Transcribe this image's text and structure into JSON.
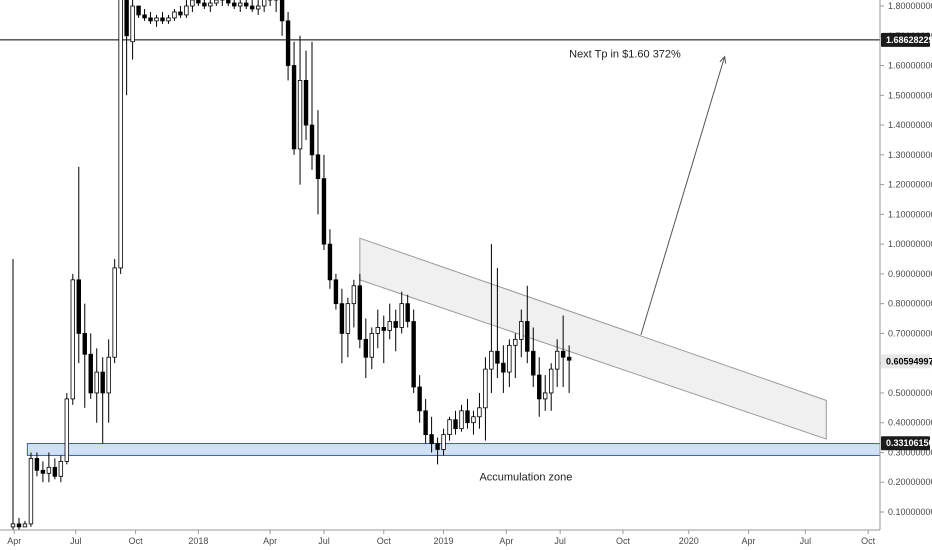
{
  "chart_data": {
    "type": "candlestick",
    "interval": "weekly",
    "title": "",
    "xlabel": "",
    "ylabel": "",
    "ylim": [
      0.04,
      1.82
    ],
    "grid": false,
    "y_ticks": [
      0.1,
      0.2,
      0.3,
      0.4,
      0.5,
      0.6,
      0.7,
      0.8,
      0.9,
      1.0,
      1.1,
      1.2,
      1.3,
      1.4,
      1.5,
      1.6,
      1.7,
      1.8
    ],
    "y_tick_labels": [
      "0.10000000",
      "0.20000000",
      "0.30000000",
      "0.40000000",
      "0.50000000",
      "0.60000000",
      "0.70000000",
      "0.80000000",
      "0.90000000",
      "1.00000000",
      "1.10000000",
      "1.20000000",
      "1.30000000",
      "1.40000000",
      "1.50000000",
      "1.60000000",
      "1.70000000",
      "1.80000000"
    ],
    "x_ticks": [
      {
        "label": "Apr",
        "t": 0.2
      },
      {
        "label": "Jul",
        "t": 10.5
      },
      {
        "label": "Oct",
        "t": 20.5
      },
      {
        "label": "2018",
        "t": 31
      },
      {
        "label": "Apr",
        "t": 43
      },
      {
        "label": "Jul",
        "t": 52
      },
      {
        "label": "Oct",
        "t": 62
      },
      {
        "label": "2019",
        "t": 72
      },
      {
        "label": "Apr",
        "t": 82.5
      },
      {
        "label": "Jul",
        "t": 91.5
      },
      {
        "label": "Oct",
        "t": 102
      },
      {
        "label": "2020",
        "t": 113
      },
      {
        "label": "Apr",
        "t": 123
      },
      {
        "label": "Jul",
        "t": 132.5
      },
      {
        "label": "Oct",
        "t": 143
      }
    ],
    "candles": [
      [
        0.05,
        0.95,
        0.04,
        0.06
      ],
      [
        0.06,
        0.08,
        0.04,
        0.05
      ],
      [
        0.05,
        0.07,
        0.05,
        0.06
      ],
      [
        0.06,
        0.3,
        0.05,
        0.28
      ],
      [
        0.28,
        0.3,
        0.22,
        0.24
      ],
      [
        0.24,
        0.27,
        0.2,
        0.23
      ],
      [
        0.23,
        0.3,
        0.2,
        0.25
      ],
      [
        0.25,
        0.28,
        0.21,
        0.22
      ],
      [
        0.22,
        0.29,
        0.2,
        0.27
      ],
      [
        0.27,
        0.5,
        0.26,
        0.48
      ],
      [
        0.48,
        0.9,
        0.46,
        0.88
      ],
      [
        0.88,
        1.26,
        0.6,
        0.7
      ],
      [
        0.7,
        0.8,
        0.45,
        0.63
      ],
      [
        0.63,
        0.7,
        0.48,
        0.5
      ],
      [
        0.5,
        0.65,
        0.4,
        0.57
      ],
      [
        0.57,
        0.62,
        0.33,
        0.5
      ],
      [
        0.5,
        0.68,
        0.4,
        0.62
      ],
      [
        0.62,
        0.95,
        0.6,
        0.92
      ],
      [
        0.92,
        1.9,
        0.9,
        1.85
      ],
      [
        1.85,
        1.95,
        1.5,
        1.7
      ]
    ],
    "candles_2": [
      [
        1.68,
        1.85,
        1.62,
        1.8
      ],
      [
        1.8,
        1.78,
        1.76,
        1.77
      ],
      [
        1.77,
        1.79,
        1.75,
        1.76
      ],
      [
        1.76,
        1.78,
        1.74,
        1.75
      ],
      [
        1.75,
        1.77,
        1.73,
        1.76
      ],
      [
        1.76,
        1.78,
        1.74,
        1.75
      ],
      [
        1.75,
        1.77,
        1.74,
        1.76
      ],
      [
        1.76,
        1.79,
        1.75,
        1.78
      ],
      [
        1.78,
        1.8,
        1.76,
        1.77
      ],
      [
        1.77,
        1.82,
        1.76,
        1.8
      ],
      [
        1.8,
        1.86,
        1.78,
        1.82
      ],
      [
        1.82,
        1.84,
        1.8,
        1.81
      ],
      [
        1.81,
        1.83,
        1.79,
        1.8
      ],
      [
        1.8,
        1.82,
        1.78,
        1.81
      ],
      [
        1.81,
        1.84,
        1.8,
        1.82
      ],
      [
        1.82,
        1.85,
        1.8,
        1.83
      ],
      [
        1.83,
        1.84,
        1.8,
        1.81
      ],
      [
        1.81,
        1.83,
        1.79,
        1.8
      ],
      [
        1.8,
        1.82,
        1.78,
        1.81
      ],
      [
        1.81,
        1.83,
        1.79,
        1.8
      ],
      [
        1.8,
        1.82,
        1.78,
        1.79
      ],
      [
        1.79,
        1.82,
        1.77,
        1.8
      ],
      [
        1.8,
        1.85,
        1.78,
        1.83
      ],
      [
        1.83,
        1.86,
        1.8,
        1.82
      ],
      [
        1.82,
        1.88,
        1.78,
        1.84
      ],
      [
        1.84,
        1.86,
        1.7,
        1.75
      ],
      [
        1.75,
        1.78,
        1.55,
        1.6
      ],
      [
        1.6,
        1.68,
        1.3,
        1.32
      ],
      [
        1.32,
        1.7,
        1.2,
        1.55
      ],
      [
        1.55,
        1.65,
        1.35,
        1.4
      ],
      [
        1.4,
        1.68,
        1.25,
        1.3
      ],
      [
        1.3,
        1.45,
        1.1,
        1.22
      ],
      [
        1.22,
        1.3,
        0.98,
        1.0
      ],
      [
        1.0,
        1.05,
        0.85,
        0.88
      ],
      [
        0.88,
        0.9,
        0.78,
        0.8
      ]
    ],
    "candles_3": [
      [
        0.8,
        0.85,
        0.6,
        0.7
      ],
      [
        0.7,
        0.82,
        0.62,
        0.8
      ],
      [
        0.8,
        0.88,
        0.72,
        0.86
      ],
      [
        0.86,
        0.9,
        0.65,
        0.68
      ],
      [
        0.68,
        0.75,
        0.55,
        0.62
      ],
      [
        0.62,
        0.72,
        0.58,
        0.7
      ],
      [
        0.7,
        0.78,
        0.65,
        0.72
      ],
      [
        0.72,
        0.76,
        0.6,
        0.71
      ],
      [
        0.71,
        0.8,
        0.68,
        0.74
      ],
      [
        0.74,
        0.78,
        0.64,
        0.72
      ],
      [
        0.72,
        0.84,
        0.7,
        0.8
      ],
      [
        0.8,
        0.83,
        0.72,
        0.74
      ],
      [
        0.74,
        0.78,
        0.5,
        0.52
      ],
      [
        0.52,
        0.56,
        0.4,
        0.44
      ],
      [
        0.44,
        0.48,
        0.33,
        0.36
      ],
      [
        0.36,
        0.42,
        0.3,
        0.33
      ],
      [
        0.33,
        0.35,
        0.26,
        0.31
      ],
      [
        0.31,
        0.38,
        0.29,
        0.36
      ],
      [
        0.36,
        0.42,
        0.34,
        0.41
      ],
      [
        0.41,
        0.44,
        0.36,
        0.38
      ],
      [
        0.38,
        0.46,
        0.37,
        0.44
      ],
      [
        0.44,
        0.48,
        0.38,
        0.4
      ],
      [
        0.4,
        0.44,
        0.36,
        0.42
      ],
      [
        0.42,
        0.5,
        0.38,
        0.45
      ],
      [
        0.45,
        0.62,
        0.34,
        0.58
      ],
      [
        0.58,
        1.0,
        0.5,
        0.64
      ],
      [
        0.64,
        0.92,
        0.55,
        0.6
      ],
      [
        0.6,
        0.66,
        0.5,
        0.57
      ],
      [
        0.57,
        0.68,
        0.52,
        0.66
      ],
      [
        0.66,
        0.7,
        0.55,
        0.68
      ],
      [
        0.68,
        0.78,
        0.62,
        0.74
      ],
      [
        0.74,
        0.86,
        0.6,
        0.64
      ],
      [
        0.64,
        0.72,
        0.52,
        0.56
      ],
      [
        0.56,
        0.62,
        0.42,
        0.48
      ],
      [
        0.48,
        0.56,
        0.44,
        0.5
      ],
      [
        0.5,
        0.6,
        0.44,
        0.58
      ],
      [
        0.58,
        0.68,
        0.52,
        0.64
      ],
      [
        0.64,
        0.76,
        0.52,
        0.62
      ],
      [
        0.62,
        0.66,
        0.5,
        0.61
      ]
    ],
    "current_price": "0.60594997",
    "resistance_line": {
      "value": 1.68628229,
      "label": "1.68628229"
    },
    "support_line": {
      "value": 0.3310615,
      "label": "0.33106150"
    },
    "annotations": {
      "target_text": "Next Tp in $1.60 372%",
      "zone_text": "Accumulation zone"
    },
    "accumulation_zone": {
      "low": 0.29,
      "high": 0.33
    },
    "channel": {
      "t_start": 58,
      "t_end": 136,
      "upper_start": 1.02,
      "upper_end": 0.475,
      "lower_start": 0.88,
      "lower_end": 0.345
    },
    "arrow": {
      "t_from": 105,
      "v_from": 0.695,
      "t_to": 119,
      "v_to": 1.63
    }
  },
  "colors": {
    "up": "#ffffff",
    "down": "#000000",
    "candle_outline": "#000000",
    "wick": "#000000",
    "zone_fill": "#cfe0f7",
    "zone_stroke": "#3a5fae",
    "channel_fill": "#f0f0f0",
    "channel_stroke": "#9a9a9a",
    "badge_dark": "#1b1b1b",
    "badge_light": "#e8e8e8",
    "axis_text": "#4a4a4a"
  }
}
